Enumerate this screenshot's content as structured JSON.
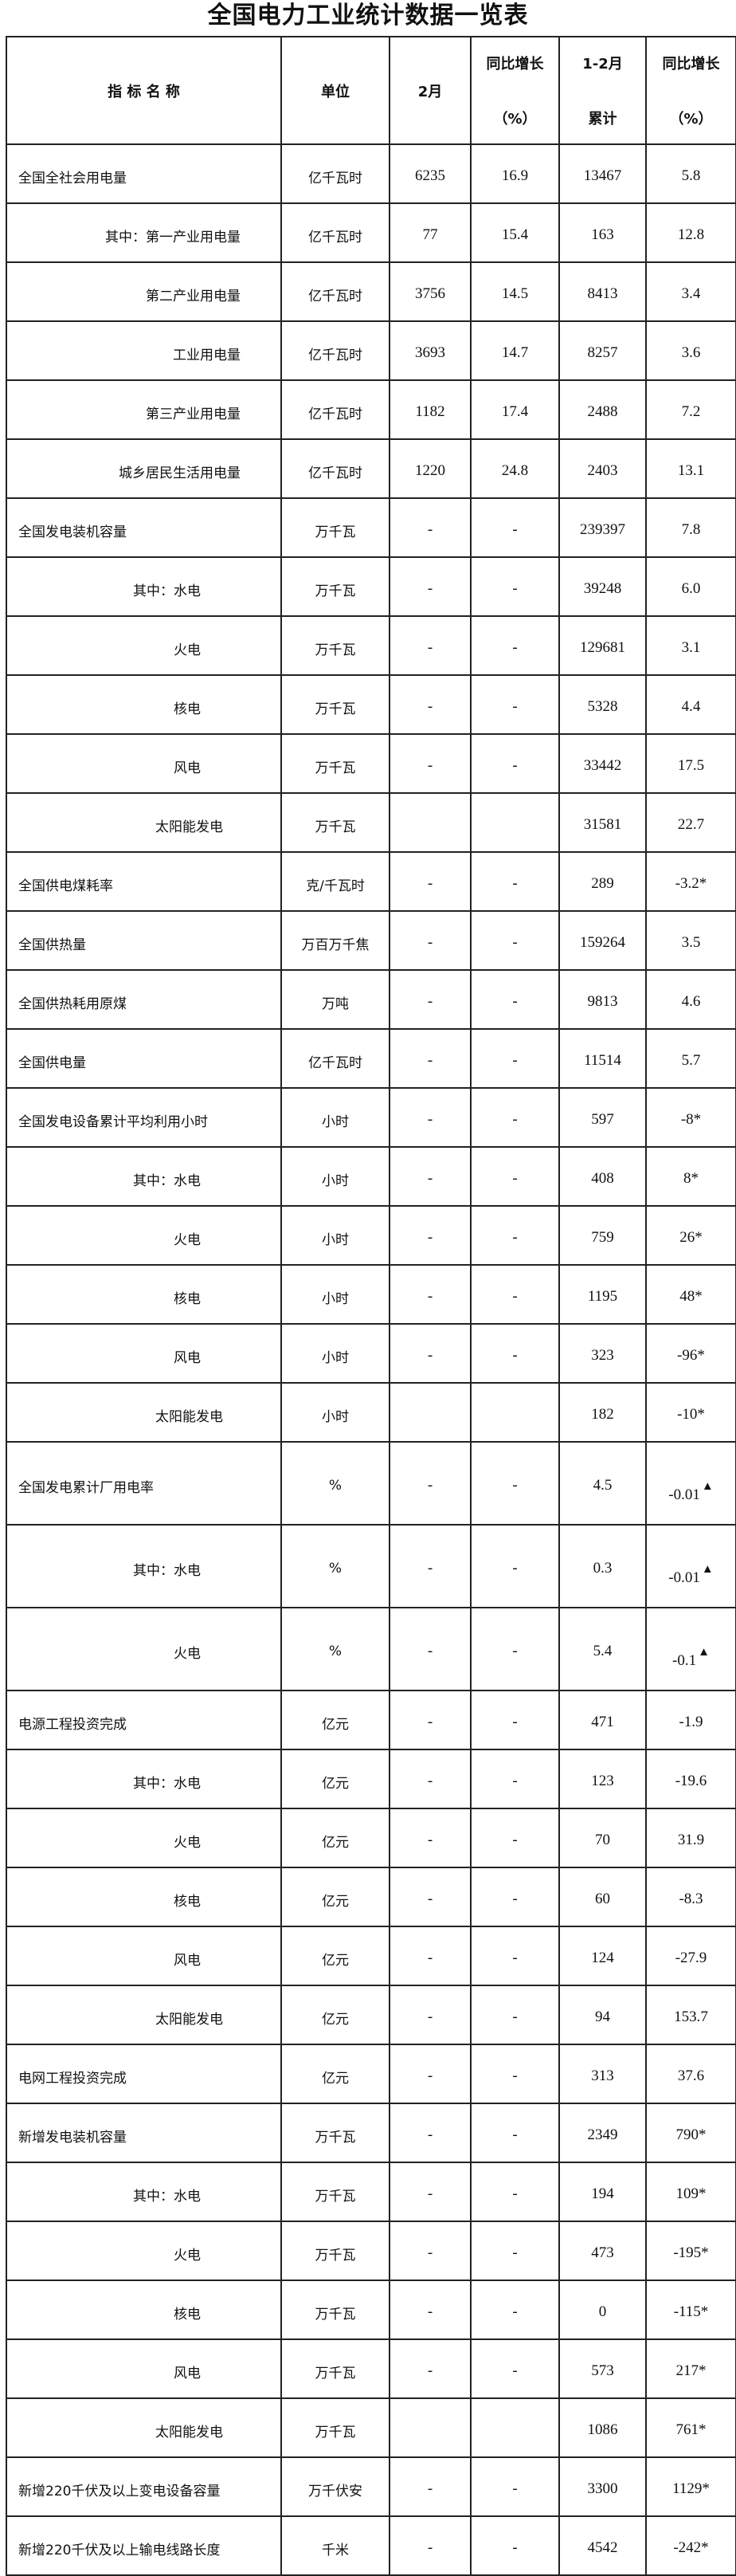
{
  "title": "全国电力工业统计数据一览表",
  "headers": {
    "name": "指 标 名 称",
    "unit": "单位",
    "month": "2月",
    "month_yoy": [
      "同比增长",
      "（%）"
    ],
    "cum": [
      "1-2月",
      "累计"
    ],
    "cum_yoy": [
      "同比增长",
      "（%）"
    ]
  },
  "marker_icon": "triangle-up",
  "rows": [
    {
      "name": "全国全社会用电量",
      "sub": false,
      "unit": "亿千瓦时",
      "month": "6235",
      "month_yoy": "16.9",
      "cum": "13467",
      "cum_yoy": "5.8"
    },
    {
      "name": "其中：第一产业用电量",
      "sub": true,
      "unit": "亿千瓦时",
      "month": "77",
      "month_yoy": "15.4",
      "cum": "163",
      "cum_yoy": "12.8"
    },
    {
      "name": "第二产业用电量",
      "sub": true,
      "unit": "亿千瓦时",
      "month": "3756",
      "month_yoy": "14.5",
      "cum": "8413",
      "cum_yoy": "3.4"
    },
    {
      "name": "工业用电量",
      "sub": true,
      "unit": "亿千瓦时",
      "month": "3693",
      "month_yoy": "14.7",
      "cum": "8257",
      "cum_yoy": "3.6"
    },
    {
      "name": "第三产业用电量",
      "sub": true,
      "unit": "亿千瓦时",
      "month": "1182",
      "month_yoy": "17.4",
      "cum": "2488",
      "cum_yoy": "7.2"
    },
    {
      "name": "城乡居民生活用电量",
      "sub": true,
      "unit": "亿千瓦时",
      "month": "1220",
      "month_yoy": "24.8",
      "cum": "2403",
      "cum_yoy": "13.1"
    },
    {
      "name": "全国发电装机容量",
      "sub": false,
      "unit": "万千瓦",
      "month": "-",
      "month_yoy": "-",
      "cum": "239397",
      "cum_yoy": "7.8"
    },
    {
      "name": "其中：水电",
      "sub": true,
      "unit": "万千瓦",
      "month": "-",
      "month_yoy": "-",
      "cum": "39248",
      "cum_yoy": "6.0"
    },
    {
      "name": "火电",
      "sub": true,
      "unit": "万千瓦",
      "month": "-",
      "month_yoy": "-",
      "cum": "129681",
      "cum_yoy": "3.1"
    },
    {
      "name": "核电",
      "sub": true,
      "unit": "万千瓦",
      "month": "-",
      "month_yoy": "-",
      "cum": "5328",
      "cum_yoy": "4.4"
    },
    {
      "name": "风电",
      "sub": true,
      "unit": "万千瓦",
      "month": "-",
      "month_yoy": "-",
      "cum": "33442",
      "cum_yoy": "17.5"
    },
    {
      "name": "太阳能发电",
      "sub": true,
      "unit": "万千瓦",
      "month": "",
      "month_yoy": "",
      "cum": "31581",
      "cum_yoy": "22.7"
    },
    {
      "name": "全国供电煤耗率",
      "sub": false,
      "unit": "克/千瓦时",
      "month": "-",
      "month_yoy": "-",
      "cum": "289",
      "cum_yoy": "-3.2*"
    },
    {
      "name": "全国供热量",
      "sub": false,
      "unit": "万百万千焦",
      "month": "-",
      "month_yoy": "-",
      "cum": "159264",
      "cum_yoy": "3.5"
    },
    {
      "name": "全国供热耗用原煤",
      "sub": false,
      "unit": "万吨",
      "month": "-",
      "month_yoy": "-",
      "cum": "9813",
      "cum_yoy": "4.6"
    },
    {
      "name": "全国供电量",
      "sub": false,
      "unit": "亿千瓦时",
      "month": "-",
      "month_yoy": "-",
      "cum": "11514",
      "cum_yoy": "5.7"
    },
    {
      "name": "全国发电设备累计平均利用小时",
      "sub": false,
      "unit": "小时",
      "month": "-",
      "month_yoy": "-",
      "cum": "597",
      "cum_yoy": "-8*"
    },
    {
      "name": "其中：水电",
      "sub": true,
      "unit": "小时",
      "month": "-",
      "month_yoy": "-",
      "cum": "408",
      "cum_yoy": "8*"
    },
    {
      "name": "火电",
      "sub": true,
      "unit": "小时",
      "month": "-",
      "month_yoy": "-",
      "cum": "759",
      "cum_yoy": "26*"
    },
    {
      "name": "核电",
      "sub": true,
      "unit": "小时",
      "month": "-",
      "month_yoy": "-",
      "cum": "1195",
      "cum_yoy": "48*"
    },
    {
      "name": "风电",
      "sub": true,
      "unit": "小时",
      "month": "-",
      "month_yoy": "-",
      "cum": "323",
      "cum_yoy": "-96*"
    },
    {
      "name": "太阳能发电",
      "sub": true,
      "unit": "小时",
      "month": "",
      "month_yoy": "",
      "cum": "182",
      "cum_yoy": "-10*"
    },
    {
      "name": "全国发电累计厂用电率",
      "sub": false,
      "unit": "%",
      "month": "-",
      "month_yoy": "-",
      "cum": "4.5",
      "cum_yoy": "-0.01",
      "marker": "▲"
    },
    {
      "name": "其中：水电",
      "sub": true,
      "unit": "%",
      "month": "-",
      "month_yoy": "-",
      "cum": "0.3",
      "cum_yoy": "-0.01",
      "marker": "▲"
    },
    {
      "name": "火电",
      "sub": true,
      "unit": "%",
      "month": "-",
      "month_yoy": "-",
      "cum": "5.4",
      "cum_yoy": "-0.1",
      "marker": "▲"
    },
    {
      "name": "电源工程投资完成",
      "sub": false,
      "unit": "亿元",
      "month": "-",
      "month_yoy": "-",
      "cum": "471",
      "cum_yoy": "-1.9"
    },
    {
      "name": "其中：水电",
      "sub": true,
      "unit": "亿元",
      "month": "-",
      "month_yoy": "-",
      "cum": "123",
      "cum_yoy": "-19.6"
    },
    {
      "name": "火电",
      "sub": true,
      "unit": "亿元",
      "month": "-",
      "month_yoy": "-",
      "cum": "70",
      "cum_yoy": "31.9"
    },
    {
      "name": "核电",
      "sub": true,
      "unit": "亿元",
      "month": "-",
      "month_yoy": "-",
      "cum": "60",
      "cum_yoy": "-8.3"
    },
    {
      "name": "风电",
      "sub": true,
      "unit": "亿元",
      "month": "-",
      "month_yoy": "-",
      "cum": "124",
      "cum_yoy": "-27.9"
    },
    {
      "name": "太阳能发电",
      "sub": true,
      "unit": "亿元",
      "month": "-",
      "month_yoy": "-",
      "cum": "94",
      "cum_yoy": "153.7"
    },
    {
      "name": "电网工程投资完成",
      "sub": false,
      "unit": "亿元",
      "month": "-",
      "month_yoy": "-",
      "cum": "313",
      "cum_yoy": "37.6"
    },
    {
      "name": "新增发电装机容量",
      "sub": false,
      "unit": "万千瓦",
      "month": "-",
      "month_yoy": "-",
      "cum": "2349",
      "cum_yoy": "790*"
    },
    {
      "name": "其中：水电",
      "sub": true,
      "unit": "万千瓦",
      "month": "-",
      "month_yoy": "-",
      "cum": "194",
      "cum_yoy": "109*"
    },
    {
      "name": "火电",
      "sub": true,
      "unit": "万千瓦",
      "month": "-",
      "month_yoy": "-",
      "cum": "473",
      "cum_yoy": "-195*"
    },
    {
      "name": "核电",
      "sub": true,
      "unit": "万千瓦",
      "month": "-",
      "month_yoy": "-",
      "cum": "0",
      "cum_yoy": "-115*"
    },
    {
      "name": "风电",
      "sub": true,
      "unit": "万千瓦",
      "month": "-",
      "month_yoy": "-",
      "cum": "573",
      "cum_yoy": "217*"
    },
    {
      "name": "太阳能发电",
      "sub": true,
      "unit": "万千瓦",
      "month": "",
      "month_yoy": "",
      "cum": "1086",
      "cum_yoy": "761*"
    },
    {
      "name": "新增220千伏及以上变电设备容量",
      "sub": false,
      "unit": "万千伏安",
      "month": "-",
      "month_yoy": "-",
      "cum": "3300",
      "cum_yoy": "1129*"
    },
    {
      "name": "新增220千伏及以上输电线路长度",
      "sub": false,
      "unit": "千米",
      "month": "-",
      "month_yoy": "-",
      "cum": "4542",
      "cum_yoy": "-242*"
    }
  ]
}
